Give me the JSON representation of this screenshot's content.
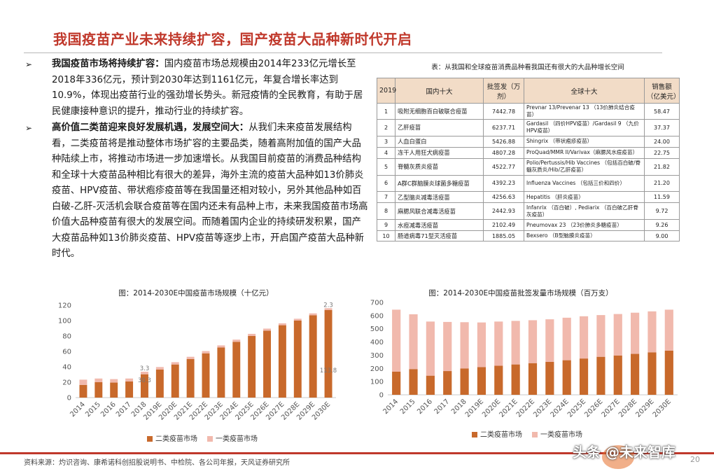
{
  "title": "我国疫苗产业未来持续扩容，国产疫苗大品种新时代开启",
  "bullets": [
    {
      "marker": "➢",
      "heading": "我国疫苗市场将持续扩容：",
      "text": "国内疫苗市场总规模由2014年233亿元增长至2018年336亿元，预计到2030年达到1161亿元，年复合增长率达到10.9%，体现出疫苗行业的强劲增长势头。新冠疫情的全民教育，有助于居民健康接种意识的提升，推动行业的持续扩容。"
    },
    {
      "marker": "➢",
      "heading": "高价值二类苗迎来良好发展机遇，发展空间大：",
      "text": "从我们未来疫苗发展结构看，二类疫苗将是推动整体市场扩容的主要品类，随着高附加值的国产大品种陆续上市，将推动市场进一步加速增长。从我国目前疫苗的消费品种结构和全球十大疫苗品种相比有很大的差异，海外主流的疫苗大品种如13价肺炎疫苗、HPV疫苗、带状疱疹疫苗等在我国量还相对较小，另外其他品种如百白破-乙肝-灭活机会联合疫苗等在国内还未有品种上市，未来我国疫苗市场高价值大品种疫苗有很大的发展空间。而随着国内企业的持续研发积累，国产大疫苗品种如13价肺炎疫苗、HPV疫苗等逐步上市，开启国产疫苗大品种新时代。"
    }
  ],
  "table": {
    "caption": "表：从我国和全球疫苗消费品种看我国还有很大的大品种增长空间",
    "headers": [
      "2019",
      "国内十大",
      "批签发（万剂）",
      "全球十大",
      "销售额（亿美元）"
    ],
    "rows": [
      [
        "1",
        "吸附无细胞百白破联合疫苗",
        "7442.78",
        "Prevnar 13/Prevenar 13 （13价肺炎结合疫苗）",
        "58.47"
      ],
      [
        "2",
        "乙肝疫苗",
        "6237.71",
        "Gardasil （四价HPV疫苗）/Gardasil 9 （九价HPV疫苗）",
        "37.37"
      ],
      [
        "3",
        "人血白蛋白",
        "5426.88",
        "Shingrix （带状疱疹疫苗）",
        "24.00"
      ],
      [
        "4",
        "冻干人用狂犬病疫苗",
        "4807.28",
        "ProQuad/MMR II/Varivax（麻腮风水痘疫苗）",
        "22.75"
      ],
      [
        "5",
        "脊髓灰质炎疫苗",
        "4522.77",
        "Polio/Pertussis/Hib Vaccines （包括百白破/脊髓灰质炎/Hib/乙肝疫苗）",
        "21.82"
      ],
      [
        "6",
        "A群C群脑膜炎球菌多糖疫苗",
        "4392.23",
        "Influenza Vaccines （包括三价和四价）",
        "21.20"
      ],
      [
        "7",
        "乙型脑炎减毒活疫苗",
        "4256.63",
        "Hepatitis （肝炎疫苗）",
        "11.59"
      ],
      [
        "8",
        "麻腮风联合减毒活疫苗",
        "2442.93",
        "Infanrix （百白破）, Pediarix （百白破乙肝脊灰疫苗）",
        "9.72"
      ],
      [
        "9",
        "水痘减毒活疫苗",
        "2102.49",
        "Pneumovax 23 （23价肺炎多糖疫苗）",
        "9.26"
      ],
      [
        "10",
        "肠道病毒71型灭活疫苗",
        "1885.05",
        "Bexsero （B型脑膜炎疫苗）",
        "9.00"
      ]
    ]
  },
  "chart_data": [
    {
      "type": "bar",
      "stacked": true,
      "title": "图：2014-2030E中国疫苗市场规模（十亿元）",
      "categories": [
        "2014",
        "2015",
        "2016",
        "2017",
        "2018",
        "2019E",
        "2020E",
        "2021E",
        "2022E",
        "2023E",
        "2024E",
        "2025E",
        "2026E",
        "2027E",
        "2028E",
        "2029E",
        "2030E"
      ],
      "series": [
        {
          "name": "二类疫苗市场",
          "color": "#c8692b",
          "values": [
            16.5,
            20,
            19.5,
            21,
            30.3,
            36.5,
            43,
            50,
            57.5,
            65,
            72.5,
            80,
            87,
            94,
            100,
            107,
            113.8
          ]
        },
        {
          "name": "一类疫苗市场",
          "color": "#f1b9ad",
          "values": [
            6.8,
            4.8,
            4.5,
            3.8,
            3.3,
            3.2,
            3.0,
            3.0,
            2.9,
            2.8,
            2.8,
            2.8,
            2.6,
            2.5,
            2.4,
            2.4,
            2.3
          ]
        }
      ],
      "annotations": [
        "2.3",
        "113.8",
        "3.3",
        "30.3"
      ],
      "ylim": [
        0,
        120
      ],
      "yticks": [
        0,
        20,
        40,
        60,
        80,
        100,
        120
      ],
      "legend": "bottom",
      "grid": false
    },
    {
      "type": "bar",
      "stacked": true,
      "title": "图：2014-2030E中国疫苗批签发量市场规模（百万支）",
      "categories": [
        "2014",
        "2015",
        "2016",
        "2017",
        "2018",
        "2019E",
        "2020E",
        "2021E",
        "2022E",
        "2023E",
        "2024E",
        "2025E",
        "2026E",
        "2027E",
        "2028E",
        "2029E",
        "2030E"
      ],
      "series": [
        {
          "name": "二类疫苗市场",
          "color": "#c8692b",
          "values": [
            175,
            195,
            145,
            180,
            200,
            210,
            220,
            230,
            240,
            250,
            262,
            275,
            288,
            298,
            310,
            322,
            335
          ]
        },
        {
          "name": "一类疫苗市场",
          "color": "#f1b9ad",
          "values": [
            470,
            415,
            410,
            372,
            350,
            338,
            335,
            330,
            325,
            322,
            322,
            320,
            316,
            314,
            312,
            310,
            310
          ]
        }
      ],
      "ylim": [
        0,
        700
      ],
      "yticks": [
        0,
        100,
        200,
        300,
        400,
        500,
        600,
        700
      ],
      "legend": "bottom",
      "grid": false
    }
  ],
  "source": "资料来源：灼识咨询、康希诺科创招股说明书、中检院、各公司年报，天风证券研究所",
  "page_number": "20",
  "watermark": "头条 @未来智库"
}
